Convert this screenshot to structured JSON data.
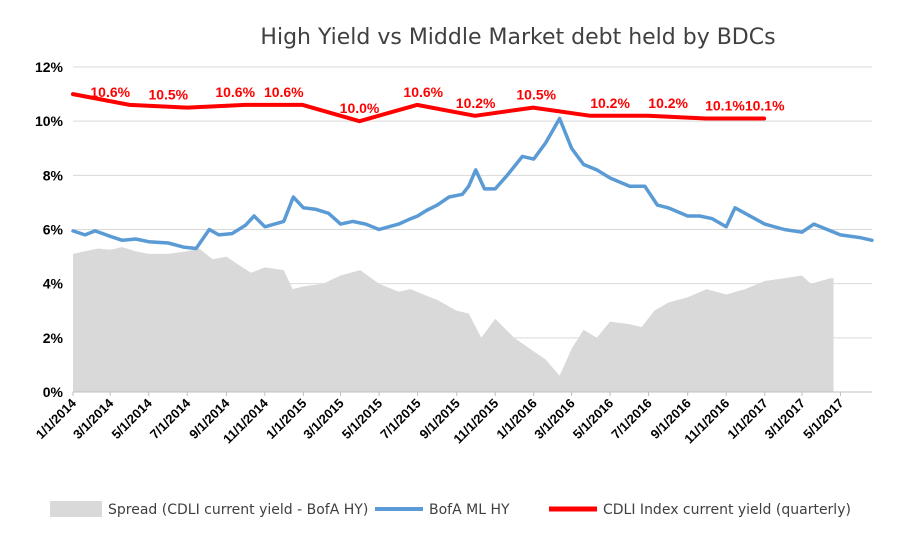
{
  "chart_data": {
    "type": "line",
    "title": "High Yield  vs  Middle Market debt held by BDCs",
    "xlabel": "",
    "ylabel": "",
    "ylim": [
      0,
      12
    ],
    "y_ticks": [
      "0%",
      "2%",
      "4%",
      "6%",
      "8%",
      "10%",
      "12%"
    ],
    "y_tick_values": [
      0,
      2,
      4,
      6,
      8,
      10,
      12
    ],
    "x_range": [
      "2014-01-01",
      "2017-06-20"
    ],
    "x_ticks": [
      "1/1/2014",
      "3/1/2014",
      "5/1/2014",
      "7/1/2014",
      "9/1/2014",
      "11/1/2014",
      "1/1/2015",
      "3/1/2015",
      "5/1/2015",
      "7/1/2015",
      "9/1/2015",
      "11/1/2015",
      "1/1/2016",
      "3/1/2016",
      "5/1/2016",
      "7/1/2016",
      "9/1/2016",
      "11/1/2016",
      "1/1/2017",
      "3/1/2017",
      "5/1/2017"
    ],
    "x_tick_dates": [
      "2014-01-01",
      "2014-03-01",
      "2014-05-01",
      "2014-07-01",
      "2014-09-01",
      "2014-11-01",
      "2015-01-01",
      "2015-03-01",
      "2015-05-01",
      "2015-07-01",
      "2015-09-01",
      "2015-11-01",
      "2016-01-01",
      "2016-03-01",
      "2016-05-01",
      "2016-07-01",
      "2016-09-01",
      "2016-11-01",
      "2017-01-01",
      "2017-03-01",
      "2017-05-01"
    ],
    "grid": "horizontal",
    "legend_position": "bottom",
    "series": [
      {
        "name": "Spread (CDLI current yield - BofA HY)",
        "kind": "area",
        "color": "#d9d9d9",
        "points": [
          [
            "2014-01-01",
            5.1
          ],
          [
            "2014-01-20",
            5.2
          ],
          [
            "2014-02-10",
            5.3
          ],
          [
            "2014-03-01",
            5.25
          ],
          [
            "2014-03-20",
            5.35
          ],
          [
            "2014-04-10",
            5.2
          ],
          [
            "2014-05-01",
            5.1
          ],
          [
            "2014-06-01",
            5.1
          ],
          [
            "2014-07-01",
            5.2
          ],
          [
            "2014-07-20",
            5.3
          ],
          [
            "2014-08-10",
            4.9
          ],
          [
            "2014-09-01",
            5.0
          ],
          [
            "2014-09-20",
            4.7
          ],
          [
            "2014-10-10",
            4.4
          ],
          [
            "2014-11-01",
            4.6
          ],
          [
            "2014-12-01",
            4.5
          ],
          [
            "2014-12-15",
            3.8
          ],
          [
            "2015-01-01",
            3.9
          ],
          [
            "2015-02-01",
            4.0
          ],
          [
            "2015-03-01",
            4.3
          ],
          [
            "2015-04-01",
            4.5
          ],
          [
            "2015-05-01",
            4.0
          ],
          [
            "2015-06-01",
            3.7
          ],
          [
            "2015-06-20",
            3.8
          ],
          [
            "2015-07-10",
            3.6
          ],
          [
            "2015-08-01",
            3.4
          ],
          [
            "2015-09-01",
            3.0
          ],
          [
            "2015-09-20",
            2.9
          ],
          [
            "2015-10-10",
            2.0
          ],
          [
            "2015-11-01",
            2.7
          ],
          [
            "2015-12-01",
            2.0
          ],
          [
            "2016-01-01",
            1.5
          ],
          [
            "2016-01-20",
            1.2
          ],
          [
            "2016-02-11",
            0.6
          ],
          [
            "2016-03-01",
            1.6
          ],
          [
            "2016-03-20",
            2.3
          ],
          [
            "2016-04-10",
            2.0
          ],
          [
            "2016-05-01",
            2.6
          ],
          [
            "2016-06-01",
            2.5
          ],
          [
            "2016-06-20",
            2.4
          ],
          [
            "2016-07-10",
            3.0
          ],
          [
            "2016-08-01",
            3.3
          ],
          [
            "2016-09-01",
            3.5
          ],
          [
            "2016-10-01",
            3.8
          ],
          [
            "2016-11-01",
            3.6
          ],
          [
            "2016-12-01",
            3.8
          ],
          [
            "2017-01-01",
            4.1
          ],
          [
            "2017-02-01",
            4.2
          ],
          [
            "2017-03-01",
            4.3
          ],
          [
            "2017-03-15",
            4.0
          ],
          [
            "2017-04-15",
            4.2
          ],
          [
            "2017-04-20",
            4.2
          ]
        ]
      },
      {
        "name": "BofA ML HY",
        "kind": "line",
        "color": "#5b9bd5",
        "points": [
          [
            "2014-01-01",
            5.95
          ],
          [
            "2014-01-20",
            5.8
          ],
          [
            "2014-02-05",
            5.95
          ],
          [
            "2014-03-01",
            5.75
          ],
          [
            "2014-03-20",
            5.6
          ],
          [
            "2014-04-10",
            5.65
          ],
          [
            "2014-05-01",
            5.55
          ],
          [
            "2014-06-01",
            5.5
          ],
          [
            "2014-06-25",
            5.35
          ],
          [
            "2014-07-15",
            5.3
          ],
          [
            "2014-08-05",
            6.0
          ],
          [
            "2014-08-20",
            5.8
          ],
          [
            "2014-09-10",
            5.85
          ],
          [
            "2014-10-01",
            6.15
          ],
          [
            "2014-10-15",
            6.5
          ],
          [
            "2014-11-01",
            6.1
          ],
          [
            "2014-12-01",
            6.3
          ],
          [
            "2014-12-16",
            7.2
          ],
          [
            "2015-01-01",
            6.8
          ],
          [
            "2015-01-20",
            6.75
          ],
          [
            "2015-02-10",
            6.6
          ],
          [
            "2015-03-01",
            6.2
          ],
          [
            "2015-03-20",
            6.3
          ],
          [
            "2015-04-10",
            6.2
          ],
          [
            "2015-05-01",
            6.0
          ],
          [
            "2015-06-01",
            6.2
          ],
          [
            "2015-06-20",
            6.4
          ],
          [
            "2015-07-01",
            6.5
          ],
          [
            "2015-07-15",
            6.7
          ],
          [
            "2015-08-01",
            6.9
          ],
          [
            "2015-08-20",
            7.2
          ],
          [
            "2015-09-10",
            7.3
          ],
          [
            "2015-09-20",
            7.6
          ],
          [
            "2015-10-01",
            8.2
          ],
          [
            "2015-10-15",
            7.5
          ],
          [
            "2015-11-01",
            7.5
          ],
          [
            "2015-11-20",
            8.0
          ],
          [
            "2015-12-14",
            8.7
          ],
          [
            "2016-01-01",
            8.6
          ],
          [
            "2016-01-20",
            9.2
          ],
          [
            "2016-02-11",
            10.1
          ],
          [
            "2016-03-01",
            9.0
          ],
          [
            "2016-03-20",
            8.4
          ],
          [
            "2016-04-10",
            8.2
          ],
          [
            "2016-05-01",
            7.9
          ],
          [
            "2016-06-01",
            7.6
          ],
          [
            "2016-06-25",
            7.6
          ],
          [
            "2016-07-15",
            6.9
          ],
          [
            "2016-08-01",
            6.8
          ],
          [
            "2016-09-01",
            6.5
          ],
          [
            "2016-09-20",
            6.5
          ],
          [
            "2016-10-10",
            6.4
          ],
          [
            "2016-11-01",
            6.1
          ],
          [
            "2016-11-15",
            6.8
          ],
          [
            "2016-12-01",
            6.6
          ],
          [
            "2017-01-01",
            6.2
          ],
          [
            "2017-02-01",
            6.0
          ],
          [
            "2017-03-01",
            5.9
          ],
          [
            "2017-03-20",
            6.2
          ],
          [
            "2017-04-10",
            6.0
          ],
          [
            "2017-05-01",
            5.8
          ],
          [
            "2017-06-01",
            5.7
          ],
          [
            "2017-06-20",
            5.6
          ]
        ]
      },
      {
        "name": "CDLI Index current yield (quarterly)",
        "kind": "line",
        "color": "#ff0000",
        "points": [
          [
            "2014-01-01",
            11.0
          ],
          [
            "2014-04-01",
            10.6
          ],
          [
            "2014-07-01",
            10.5
          ],
          [
            "2014-10-01",
            10.6
          ],
          [
            "2014-12-31",
            10.6
          ],
          [
            "2015-03-31",
            10.0
          ],
          [
            "2015-06-30",
            10.6
          ],
          [
            "2015-09-30",
            10.2
          ],
          [
            "2015-12-31",
            10.5
          ],
          [
            "2016-03-31",
            10.2
          ],
          [
            "2016-06-30",
            10.2
          ],
          [
            "2016-09-30",
            10.1
          ],
          [
            "2016-12-31",
            10.1
          ]
        ]
      }
    ],
    "data_labels": [
      {
        "date": "2014-03-01",
        "value": 10.6,
        "text": "10.6%"
      },
      {
        "date": "2014-06-01",
        "value": 10.5,
        "text": "10.5%"
      },
      {
        "date": "2014-09-15",
        "value": 10.6,
        "text": "10.6%"
      },
      {
        "date": "2014-12-01",
        "value": 10.6,
        "text": "10.6%"
      },
      {
        "date": "2015-03-31",
        "value": 10.0,
        "text": "10.0%"
      },
      {
        "date": "2015-07-10",
        "value": 10.6,
        "text": "10.6%"
      },
      {
        "date": "2015-10-01",
        "value": 10.2,
        "text": "10.2%"
      },
      {
        "date": "2016-01-05",
        "value": 10.5,
        "text": "10.5%"
      },
      {
        "date": "2016-05-01",
        "value": 10.2,
        "text": "10.2%"
      },
      {
        "date": "2016-08-01",
        "value": 10.2,
        "text": "10.2%"
      },
      {
        "date": "2016-10-30",
        "value": 10.1,
        "text": "10.1%"
      },
      {
        "date": "2017-01-01",
        "value": 10.1,
        "text": "10.1%"
      }
    ]
  }
}
